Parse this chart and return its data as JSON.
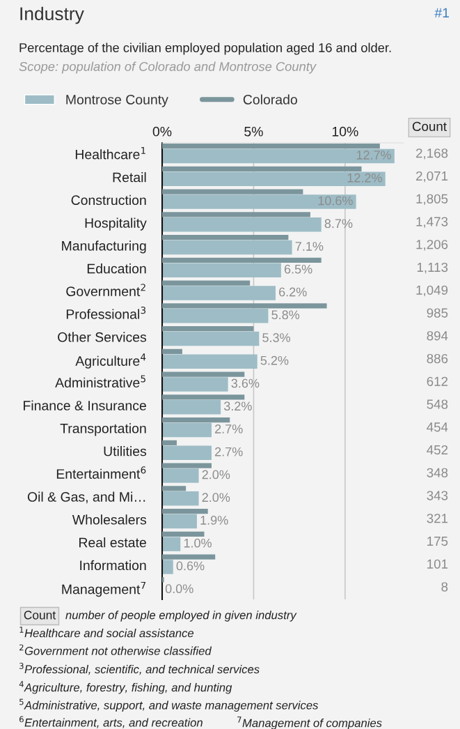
{
  "chart_data": {
    "type": "bar",
    "orientation": "horizontal",
    "title": "Industry",
    "subtitle": "Percentage of the civilian employed population aged 16 and older.",
    "categories": [
      "Healthcare$^{1}$",
      "Retail",
      "Construction",
      "Hospitality",
      "Manufacturing",
      "Education",
      "Government$^{2}$",
      "Professional$^{3}$",
      "Other Services",
      "Agriculture$^{4}$",
      "Administrative$^{5}$",
      "Finance & Insurance",
      "Transportation",
      "Utilities",
      "Entertainment$^{6}$",
      "Oil & Gas, and Mi…",
      "Wholesalers",
      "Real estate",
      "Information",
      "Management$^{7}$"
    ],
    "series": [
      {
        "name": "Montrose County",
        "color": "#9dbcc6",
        "values": [
          12.7,
          12.2,
          10.6,
          8.7,
          7.1,
          6.5,
          6.2,
          5.8,
          5.3,
          5.2,
          3.6,
          3.2,
          2.7,
          2.7,
          2.0,
          2.0,
          1.9,
          1.0,
          0.6,
          0.0
        ],
        "value_labels": [
          "12.7%",
          "12.2%",
          "10.6%",
          "8.7%",
          "7.1%",
          "6.5%",
          "6.2%",
          "5.8%",
          "5.3%",
          "5.2%",
          "3.6%",
          "3.2%",
          "2.7%",
          "2.7%",
          "2.0%",
          "2.0%",
          "1.9%",
          "1.0%",
          "0.6%",
          "0.0%"
        ]
      },
      {
        "name": "Colorado",
        "color": "#7b959c",
        "values": [
          11.9,
          10.9,
          7.7,
          8.1,
          6.9,
          8.7,
          4.8,
          9.0,
          5.0,
          1.1,
          4.5,
          4.5,
          3.7,
          0.8,
          2.7,
          1.3,
          2.5,
          2.3,
          2.9,
          0.1
        ]
      }
    ],
    "xlim": [
      0,
      13.2
    ],
    "xticks": [
      {
        "value": 0,
        "label": "0%"
      },
      {
        "value": 5,
        "label": "5%"
      },
      {
        "value": 10,
        "label": "10%"
      }
    ],
    "grid": "x",
    "legend": "top left",
    "annotations": [
      "#1",
      "Scope: population of Colorado and Montrose County",
      "Count",
      "2,168",
      "2,071",
      "1,805",
      "1,473",
      "1,206",
      "1,113",
      "1,049",
      "985",
      "894",
      "886",
      "612",
      "548",
      "454",
      "452",
      "348",
      "343",
      "321",
      "175",
      "101",
      "8",
      "Count",
      "number of people employed in given industry",
      "$^{1}$Healthcare and social assistance",
      "$^{2}$Government not otherwise classified",
      "$^{3}$Professional, scientific, and technical services",
      "$^{4}$Agriculture, forestry, fishing, and hunting",
      "$^{5}$Administrative, support, and waste management services",
      "$^{6}$Entertainment, arts, and recreation",
      "$^{7}$Management of companies"
    ]
  }
}
